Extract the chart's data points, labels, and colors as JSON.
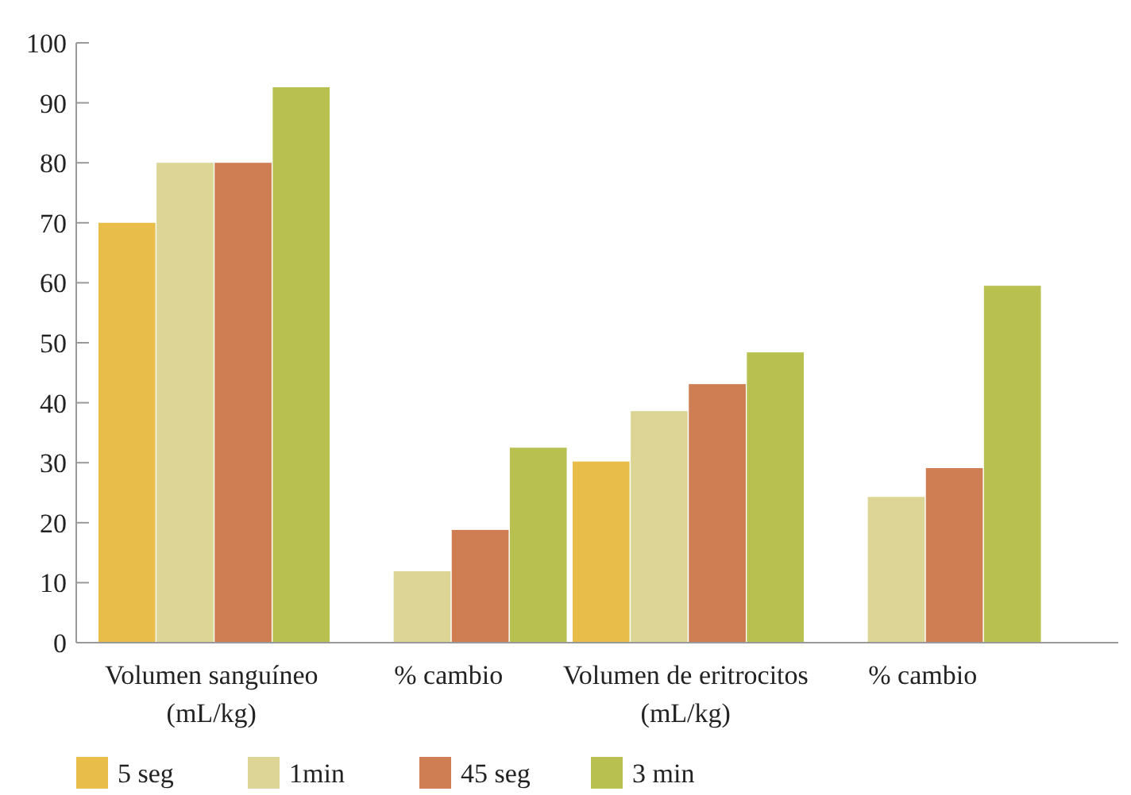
{
  "chart_data": {
    "type": "bar",
    "categories": [
      "Volumen sanguíneo (mL/kg)",
      "% cambio",
      "Volumen de eritrocitos (mL/kg)",
      "% cambio"
    ],
    "series": [
      {
        "name": "5 seg",
        "color": "#e8bd4a",
        "values": [
          70,
          null,
          30.2,
          null
        ]
      },
      {
        "name": "1min",
        "color": "#dcd595",
        "values": [
          80,
          11.9,
          38.6,
          24.3
        ]
      },
      {
        "name": "45 seg",
        "color": "#cf7d52",
        "values": [
          80,
          18.8,
          43.1,
          29.1
        ]
      },
      {
        "name": "3 min",
        "color": "#b8c050",
        "values": [
          92.6,
          32.5,
          48.4,
          59.5
        ]
      }
    ],
    "ylim": [
      0,
      100
    ],
    "yticks": [
      0,
      10,
      20,
      30,
      40,
      50,
      60,
      70,
      80,
      90,
      100
    ],
    "grid": false,
    "legend": "bottom"
  }
}
